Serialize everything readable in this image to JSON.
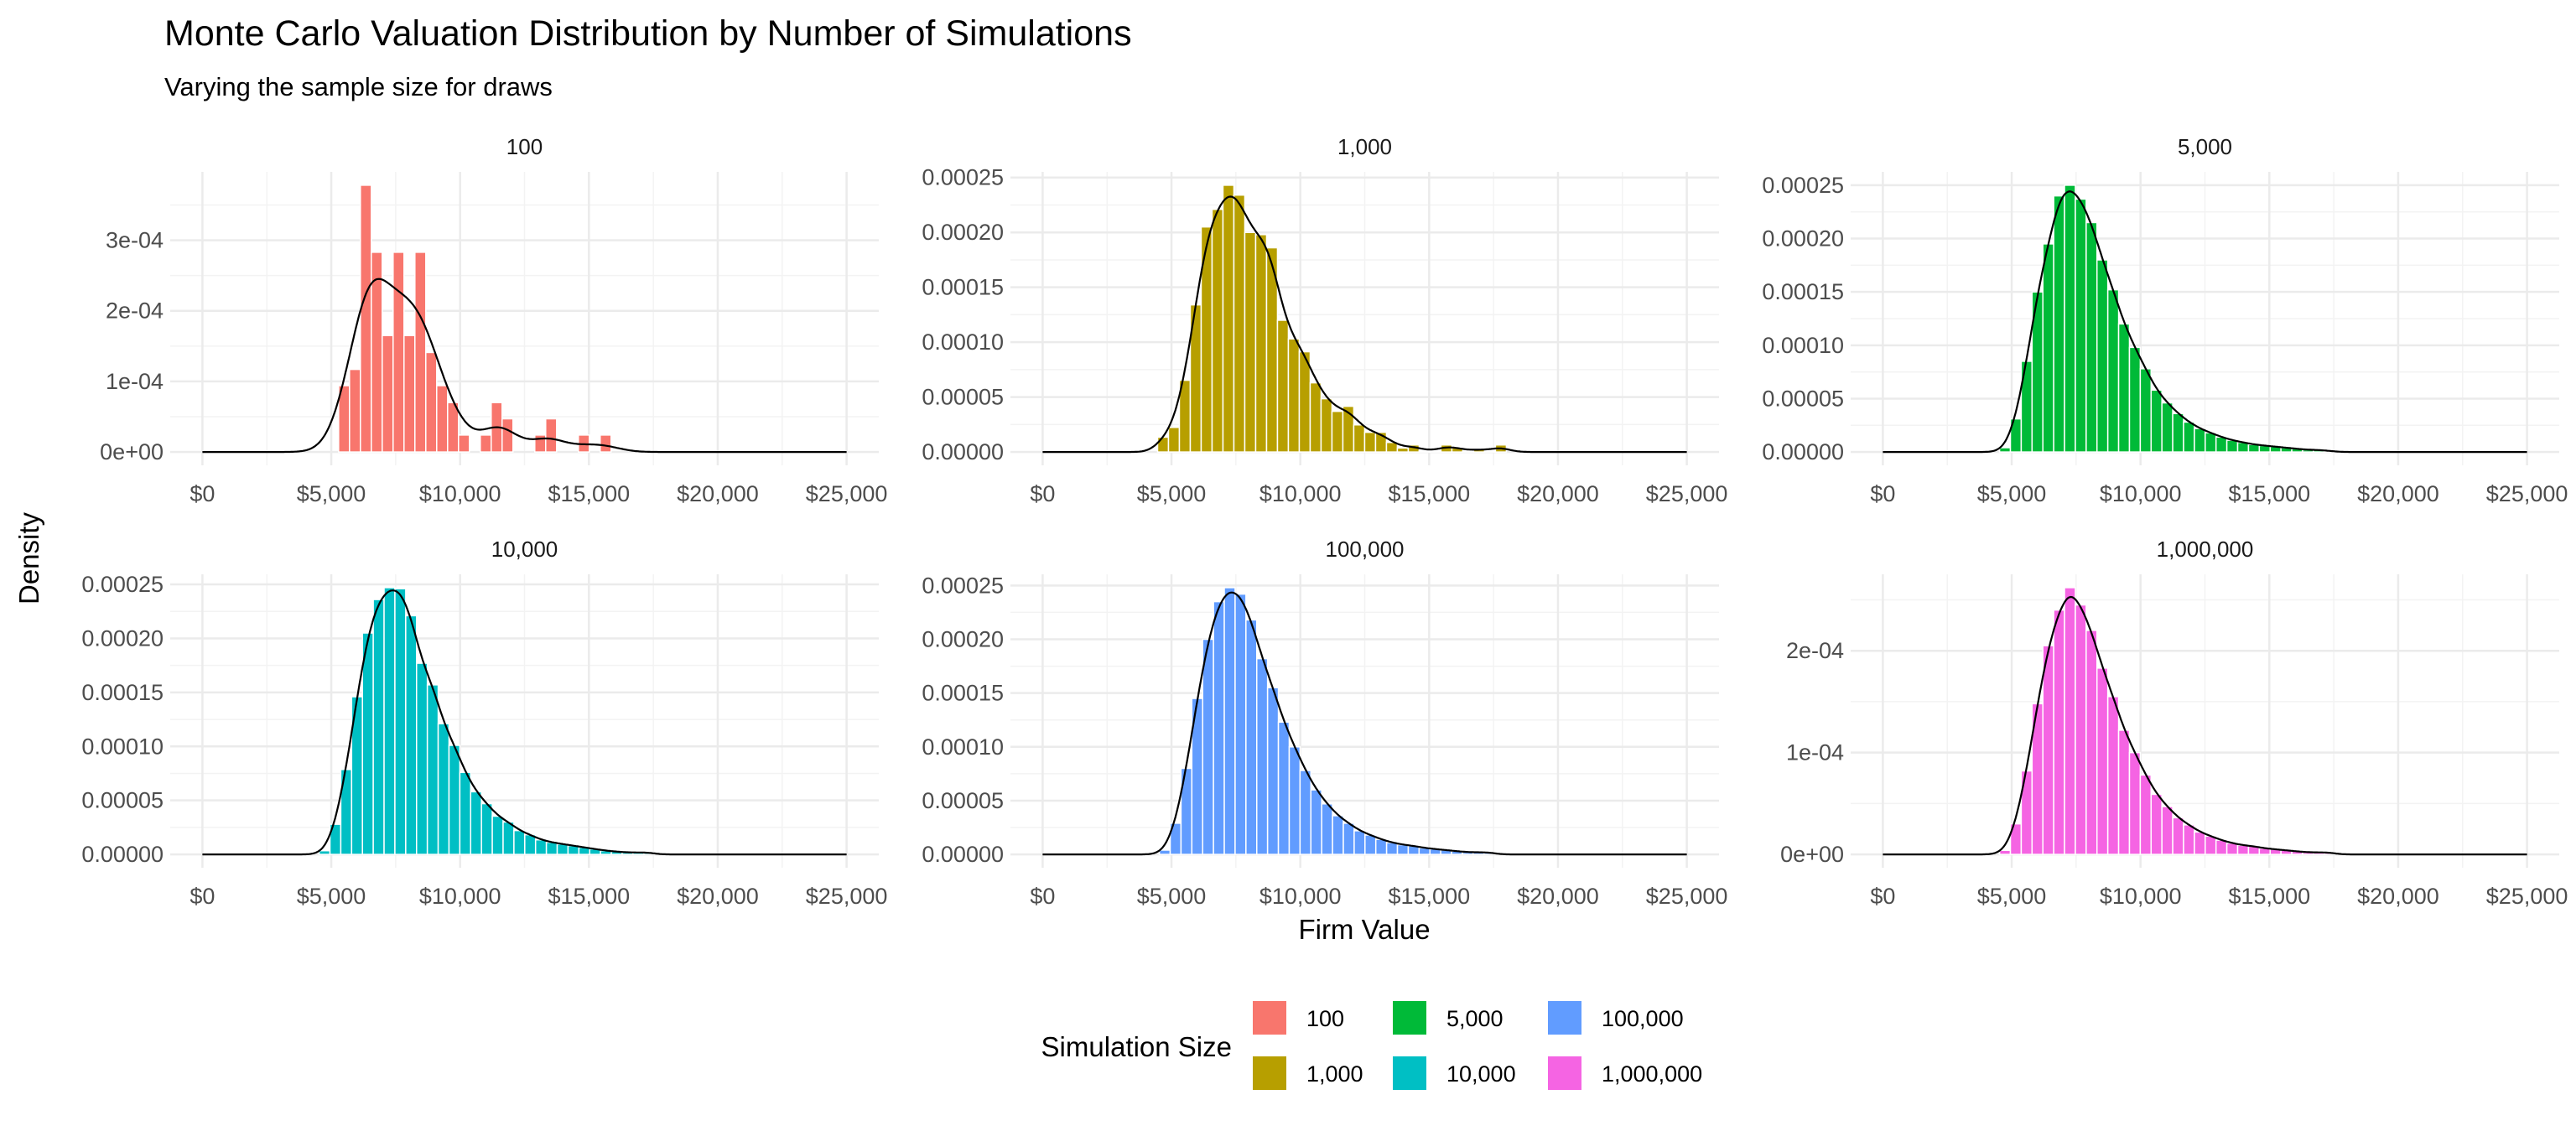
{
  "chart_data": {
    "type": "bar",
    "title": "Monte Carlo Valuation Distribution by Number of Simulations",
    "subtitle": "Varying the sample size for draws",
    "xlabel": "Firm Value",
    "ylabel": "Density",
    "xlim": [
      0,
      25000
    ],
    "x_ticks": [
      0,
      5000,
      10000,
      15000,
      20000,
      25000
    ],
    "x_tick_labels": [
      "$0",
      "$5,000",
      "$10,000",
      "$15,000",
      "$20,000",
      "$25,000"
    ],
    "grid": true,
    "legend": {
      "title": "Simulation Size",
      "position": "bottom",
      "entries": [
        {
          "label": "100",
          "color": "#F8766D"
        },
        {
          "label": "1,000",
          "color": "#B79F00"
        },
        {
          "label": "5,000",
          "color": "#00BA38"
        },
        {
          "label": "10,000",
          "color": "#00BFC4"
        },
        {
          "label": "100,000",
          "color": "#619CFF"
        },
        {
          "label": "1,000,000",
          "color": "#F564E3"
        }
      ]
    },
    "panels": [
      {
        "label": "100",
        "color": "#F8766D",
        "bin_start": 5285,
        "bin_width": 423,
        "density_bandwidth": 650,
        "y_ticks": [
          0,
          0.0001,
          0.0002,
          0.0003
        ],
        "y_tick_labels": [
          "0e+00",
          "1e-04",
          "2e-04",
          "3e-04"
        ],
        "values": [
          9.4e-05,
          0.000117,
          0.000378,
          0.000283,
          0.000165,
          0.000283,
          0.000165,
          0.000283,
          0.000141,
          9.4e-05,
          7e-05,
          2.4e-05,
          0,
          2.4e-05,
          7e-05,
          4.7e-05,
          0,
          0,
          2.4e-05,
          4.7e-05,
          0,
          0,
          2.4e-05,
          0,
          2.4e-05
        ]
      },
      {
        "label": "1,000",
        "color": "#B79F00",
        "bin_start": 4461,
        "bin_width": 423,
        "density_bandwidth": 380,
        "y_ticks": [
          0,
          5e-05,
          0.0001,
          0.00015,
          0.0002,
          0.00025
        ],
        "y_tick_labels": [
          "0.00000",
          "0.00005",
          "0.00010",
          "0.00015",
          "0.00020",
          "0.00025"
        ],
        "values": [
          1.35e-05,
          2.24e-05,
          6.53e-05,
          0.000134,
          0.000205,
          0.000221,
          0.000243,
          0.000234,
          0.0002,
          0.000198,
          0.000186,
          0.00012,
          0.000103,
          9.13e-05,
          6.3e-05,
          4.85e-05,
          3.7e-05,
          4.16e-05,
          2.47e-05,
          1.79e-05,
          1.79e-05,
          8.7e-06,
          3.6e-06,
          6.4e-06,
          1e-06,
          1e-06,
          6.4e-06,
          3.6e-06,
          1e-06,
          2.8e-06,
          1e-06,
          6.4e-06
        ]
      },
      {
        "label": "5,000",
        "color": "#00BA38",
        "bin_start": 4530,
        "bin_width": 420,
        "density_bandwidth": 300,
        "y_ticks": [
          0,
          5e-05,
          0.0001,
          0.00015,
          0.0002,
          0.00025
        ],
        "y_tick_labels": [
          "0.00000",
          "0.00005",
          "0.00010",
          "0.00015",
          "0.00020",
          "0.00025"
        ],
        "values": [
          4e-06,
          3.1e-05,
          8.5e-05,
          0.00015,
          0.000195,
          0.00024,
          0.00025,
          0.000237,
          0.000215,
          0.00018,
          0.000152,
          0.00012,
          9.8e-05,
          7.8e-05,
          5.8e-05,
          4.6e-05,
          3.6e-05,
          2.8e-05,
          2.2e-05,
          1.8e-05,
          1.4e-05,
          1.1e-05,
          9e-06,
          7e-06,
          6e-06,
          5e-06,
          4e-06,
          3e-06,
          2e-06,
          2e-06,
          1e-06
        ]
      },
      {
        "label": "10,000",
        "color": "#00BFC4",
        "bin_start": 4530,
        "bin_width": 420,
        "density_bandwidth": 300,
        "y_ticks": [
          0,
          5e-05,
          0.0001,
          0.00015,
          0.0002,
          0.00025
        ],
        "y_tick_labels": [
          "0.00000",
          "0.00005",
          "0.00010",
          "0.00015",
          "0.00020",
          "0.00025"
        ],
        "values": [
          3.4e-06,
          2.79e-05,
          7.86e-05,
          0.000146,
          0.000205,
          0.000236,
          0.000247,
          0.000246,
          0.000221,
          0.000177,
          0.000157,
          0.000121,
          0.000101,
          7.6e-05,
          5.8e-05,
          4.7e-05,
          3.54e-05,
          3e-05,
          2.21e-05,
          1.82e-05,
          1.35e-05,
          1.12e-05,
          9.6e-06,
          8.1e-06,
          6.5e-06,
          5e-06,
          3.4e-06,
          2.6e-06,
          1.8e-06,
          1.8e-06,
          1.8e-06
        ]
      },
      {
        "label": "100,000",
        "color": "#619CFF",
        "bin_start": 4530,
        "bin_width": 420,
        "density_bandwidth": 300,
        "y_ticks": [
          0,
          5e-05,
          0.0001,
          0.00015,
          0.0002,
          0.00025
        ],
        "y_tick_labels": [
          "0.00000",
          "0.00005",
          "0.00010",
          "0.00015",
          "0.00020",
          "0.00025"
        ],
        "values": [
          4e-06,
          2.9e-05,
          8e-05,
          0.000145,
          0.0002,
          0.000235,
          0.000248,
          0.000242,
          0.000218,
          0.000182,
          0.000155,
          0.000123,
          0.0001,
          7.8e-05,
          6e-05,
          4.7e-05,
          3.6e-05,
          2.9e-05,
          2.2e-05,
          1.8e-05,
          1.4e-05,
          1.1e-05,
          9e-06,
          8e-06,
          6e-06,
          5e-06,
          4e-06,
          3e-06,
          2e-06,
          2e-06,
          2e-06
        ]
      },
      {
        "label": "1,000,000",
        "color": "#F564E3",
        "bin_start": 4530,
        "bin_width": 420,
        "density_bandwidth": 300,
        "y_ticks": [
          0,
          0.0001,
          0.0002
        ],
        "y_tick_labels": [
          "0e+00",
          "1e-04",
          "2e-04"
        ],
        "values": [
          4e-06,
          3e-05,
          8.2e-05,
          0.000148,
          0.000205,
          0.00024,
          0.000262,
          0.000245,
          0.00022,
          0.000183,
          0.000155,
          0.000122,
          0.0001,
          7.8e-05,
          5.9e-05,
          4.7e-05,
          3.6e-05,
          2.9e-05,
          2.2e-05,
          1.8e-05,
          1.4e-05,
          1.1e-05,
          9e-06,
          8e-06,
          6e-06,
          5e-06,
          4e-06,
          3e-06,
          2e-06,
          2e-06,
          2e-06
        ]
      }
    ]
  }
}
